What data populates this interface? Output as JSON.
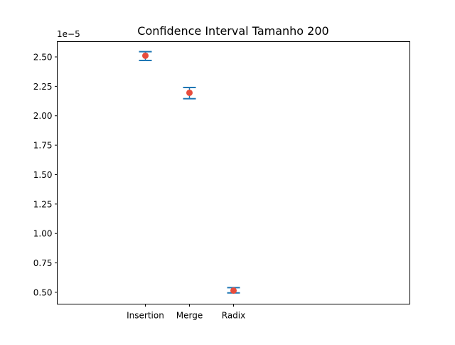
{
  "chart_data": {
    "type": "scatter",
    "title": "Confidence Interval Tamanho 200",
    "xlabel": "",
    "ylabel": "",
    "y_offset_label": "1e−5",
    "categories": [
      "Insertion",
      "Merge",
      "Radix"
    ],
    "mean": [
      2.51,
      2.195,
      0.515
    ],
    "ci_low": [
      2.47,
      2.145,
      0.495
    ],
    "ci_high": [
      2.545,
      2.24,
      0.54
    ],
    "ylim": [
      0.4,
      2.63
    ],
    "yticks": [
      0.5,
      0.75,
      1.0,
      1.25,
      1.5,
      1.75,
      2.0,
      2.25,
      2.5
    ],
    "ytick_labels": [
      "0.50",
      "0.75",
      "1.00",
      "1.25",
      "1.50",
      "1.75",
      "2.00",
      "2.25",
      "2.50"
    ],
    "xlim": [
      -2,
      6
    ],
    "grid": false,
    "colors": {
      "interval": "#1f77b4",
      "mean": "#e74c3c"
    }
  }
}
